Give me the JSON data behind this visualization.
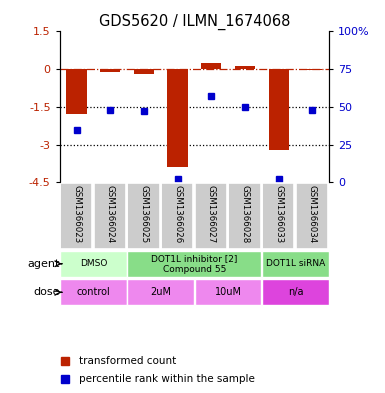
{
  "title": "GDS5620 / ILMN_1674068",
  "samples": [
    "GSM1366023",
    "GSM1366024",
    "GSM1366025",
    "GSM1366026",
    "GSM1366027",
    "GSM1366028",
    "GSM1366033",
    "GSM1366034"
  ],
  "bar_values": [
    -1.8,
    -0.1,
    -0.2,
    -3.9,
    0.25,
    0.12,
    -3.2,
    -0.02
  ],
  "dot_values": [
    35,
    48,
    47,
    2,
    57,
    50,
    2,
    48
  ],
  "ylim_left": [
    -4.5,
    1.5
  ],
  "ylim_right": [
    0,
    100
  ],
  "yticks_left": [
    1.5,
    0,
    -1.5,
    -3,
    -4.5
  ],
  "yticks_right": [
    100,
    75,
    50,
    25,
    0
  ],
  "ytick_labels_left": [
    "1.5",
    "0",
    "-1.5",
    "-3",
    "-4.5"
  ],
  "ytick_labels_right": [
    "100%",
    "75",
    "50",
    "25",
    "0"
  ],
  "bar_color": "#bb2200",
  "dot_color": "#0000cc",
  "agent_row": [
    {
      "label": "DMSO",
      "color": "#ccffcc",
      "span": [
        0,
        2
      ]
    },
    {
      "label": "DOT1L inhibitor [2]\nCompound 55",
      "color": "#88dd88",
      "span": [
        2,
        6
      ]
    },
    {
      "label": "DOT1L siRNA",
      "color": "#88dd88",
      "span": [
        6,
        8
      ]
    }
  ],
  "dose_row": [
    {
      "label": "control",
      "color": "#ee88ee",
      "span": [
        0,
        2
      ]
    },
    {
      "label": "2uM",
      "color": "#ee88ee",
      "span": [
        2,
        4
      ]
    },
    {
      "label": "10uM",
      "color": "#ee88ee",
      "span": [
        4,
        6
      ]
    },
    {
      "label": "n/a",
      "color": "#dd44dd",
      "span": [
        6,
        8
      ]
    }
  ],
  "legend_bar_label": "transformed count",
  "legend_dot_label": "percentile rank within the sample",
  "agent_label": "agent",
  "dose_label": "dose",
  "sample_row_color": "#cccccc",
  "background_color": "#ffffff"
}
